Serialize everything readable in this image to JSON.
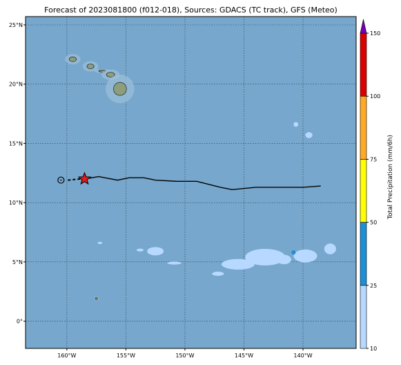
{
  "title": "Forecast of 2023081800 (f012-018), Sources: GDACS (TC track), GFS (Meteo)",
  "map": {
    "lon_range": [
      -163.5,
      -135.5
    ],
    "lat_range": [
      -2.3,
      25.7
    ],
    "lon_ticks": [
      {
        "value": -160,
        "label": "160°W"
      },
      {
        "value": -155,
        "label": "155°W"
      },
      {
        "value": -150,
        "label": "150°W"
      },
      {
        "value": -145,
        "label": "145°W"
      },
      {
        "value": -140,
        "label": "140°W"
      }
    ],
    "lat_ticks": [
      {
        "value": 0,
        "label": "0°"
      },
      {
        "value": 5,
        "label": "5°N"
      },
      {
        "value": 10,
        "label": "10°N"
      },
      {
        "value": 15,
        "label": "15°N"
      },
      {
        "value": 20,
        "label": "20°N"
      },
      {
        "value": 25,
        "label": "25°N"
      }
    ],
    "ocean_color": "#77a7cc",
    "gridlines": true,
    "islands": [
      {
        "name": "Kauai",
        "lon": -159.5,
        "lat": 22.1
      },
      {
        "name": "Oahu",
        "lon": -158.0,
        "lat": 21.5
      },
      {
        "name": "Molokai",
        "lon": -157.0,
        "lat": 21.1
      },
      {
        "name": "Maui",
        "lon": -156.3,
        "lat": 20.8
      },
      {
        "name": "Hawaii",
        "lon": -155.5,
        "lat": 19.6
      },
      {
        "name": "Jarvis",
        "lon": -157.5,
        "lat": 1.9
      }
    ]
  },
  "track": {
    "color": "#000000",
    "points": [
      {
        "lon": -160.5,
        "lat": 11.9,
        "marker": "circle"
      },
      {
        "lon": -159.5,
        "lat": 12.0,
        "segment": "dashed"
      },
      {
        "lon": -158.5,
        "lat": 12.0,
        "marker": "star"
      },
      {
        "lon": -157.3,
        "lat": 12.2
      },
      {
        "lon": -155.7,
        "lat": 11.9
      },
      {
        "lon": -154.7,
        "lat": 12.1
      },
      {
        "lon": -153.5,
        "lat": 12.1
      },
      {
        "lon": -152.5,
        "lat": 11.9
      },
      {
        "lon": -150.7,
        "lat": 11.8
      },
      {
        "lon": -149.0,
        "lat": 11.8
      },
      {
        "lon": -147.0,
        "lat": 11.3
      },
      {
        "lon": -146.0,
        "lat": 11.1
      },
      {
        "lon": -144.0,
        "lat": 11.3
      },
      {
        "lon": -142.0,
        "lat": 11.3
      },
      {
        "lon": -140.0,
        "lat": 11.3
      },
      {
        "lon": -138.5,
        "lat": 11.4
      }
    ],
    "star_color": "#e41a1c"
  },
  "precip_blobs": [
    {
      "lon": -143.2,
      "lat": 5.4,
      "rx": 1.7,
      "ry": 0.7,
      "class": "10-25"
    },
    {
      "lon": -145.5,
      "lat": 4.8,
      "rx": 1.4,
      "ry": 0.45,
      "class": "10-25"
    },
    {
      "lon": -141.6,
      "lat": 5.2,
      "rx": 0.6,
      "ry": 0.4,
      "class": "10-25"
    },
    {
      "lon": -139.8,
      "lat": 5.5,
      "rx": 1.0,
      "ry": 0.55,
      "class": "10-25"
    },
    {
      "lon": -137.7,
      "lat": 6.1,
      "rx": 0.5,
      "ry": 0.45,
      "class": "10-25"
    },
    {
      "lon": -152.5,
      "lat": 5.9,
      "rx": 0.7,
      "ry": 0.35,
      "class": "10-25"
    },
    {
      "lon": -153.8,
      "lat": 6.0,
      "rx": 0.3,
      "ry": 0.12,
      "class": "10-25"
    },
    {
      "lon": -150.9,
      "lat": 4.9,
      "rx": 0.6,
      "ry": 0.12,
      "class": "10-25"
    },
    {
      "lon": -147.2,
      "lat": 4.0,
      "rx": 0.5,
      "ry": 0.18,
      "class": "10-25"
    },
    {
      "lon": -157.2,
      "lat": 6.6,
      "rx": 0.2,
      "ry": 0.1,
      "class": "10-25"
    },
    {
      "lon": -140.6,
      "lat": 16.6,
      "rx": 0.2,
      "ry": 0.2,
      "class": "10-25"
    },
    {
      "lon": -139.5,
      "lat": 15.7,
      "rx": 0.3,
      "ry": 0.25,
      "class": "10-25"
    },
    {
      "lon": -140.8,
      "lat": 5.8,
      "rx": 0.18,
      "ry": 0.18,
      "class": "25-50"
    }
  ],
  "colorbar": {
    "title": "Total Precipitation (mm/6h)",
    "levels": [
      10,
      25,
      50,
      75,
      100,
      150
    ],
    "labels": [
      "10",
      "25",
      "50",
      "75",
      "100",
      "150"
    ],
    "colors": [
      "#b7d9ff",
      "#1d8fd6",
      "#ffff00",
      "#ffaa22",
      "#dd0000"
    ],
    "extend_color": "#7a00b5"
  }
}
